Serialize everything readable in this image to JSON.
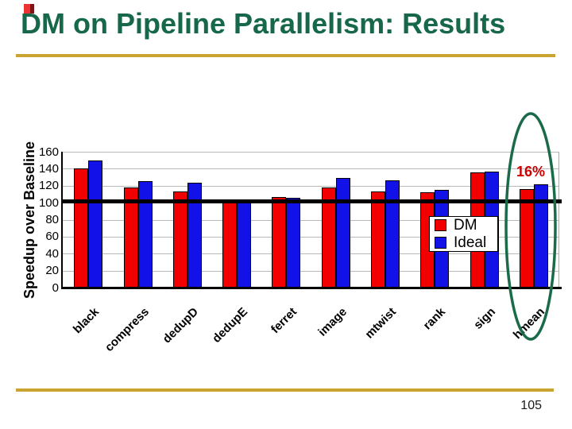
{
  "slide": {
    "title": "DM on Pipeline Parallelism: Results",
    "page_number": "105",
    "colors": {
      "title_green": "#17684A",
      "accent_gold": "#C9A431",
      "ellipse_green": "#1B6B4B",
      "annotation_red": "#CC0000"
    }
  },
  "chart_data": {
    "type": "bar",
    "title": "",
    "xlabel": "",
    "ylabel": "Speedup over Baseline",
    "ylim": [
      0,
      160
    ],
    "yticks": [
      0,
      20,
      40,
      60,
      80,
      100,
      120,
      140,
      160
    ],
    "grid": true,
    "baseline_value": 100,
    "legend_position": "inside-right",
    "categories": [
      "black",
      "compress",
      "dedupD",
      "dedupE",
      "ferret",
      "image",
      "mtwist",
      "rank",
      "sign",
      "hmean"
    ],
    "series": [
      {
        "name": "DM",
        "color": "#F20000",
        "values": [
          140,
          118,
          113,
          101,
          107,
          118,
          113,
          112,
          136,
          116
        ]
      },
      {
        "name": "Ideal",
        "color": "#1212E8",
        "values": [
          150,
          125,
          124,
          101,
          106,
          129,
          126,
          115,
          137,
          122
        ]
      }
    ],
    "annotation": {
      "text": "16%",
      "category": "hmean"
    },
    "highlight": {
      "shape": "ellipse",
      "category": "hmean"
    }
  }
}
